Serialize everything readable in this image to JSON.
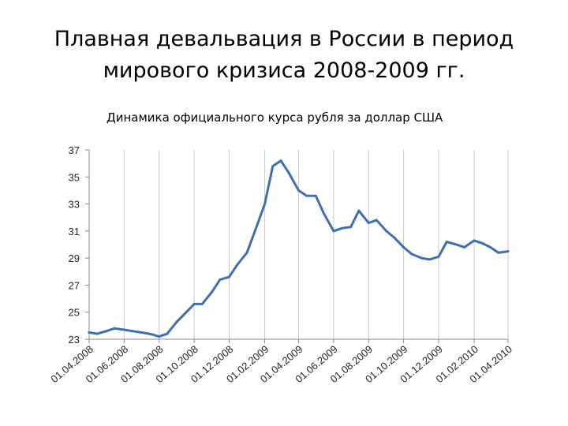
{
  "slide": {
    "title_line1": "Плавная девальвация в России в период",
    "title_line2": "мирового кризиса 2008-2009 гг."
  },
  "chart_data": {
    "type": "line",
    "title": "Динамика официального курса рубля за доллар США",
    "xlabel": "",
    "ylabel": "",
    "ylim": [
      23,
      37
    ],
    "yticks": [
      23,
      25,
      27,
      29,
      31,
      33,
      35,
      37
    ],
    "xticks": [
      "01.04.2008",
      "01.06.2008",
      "01.08.2008",
      "01.10.2008",
      "01.12.2008",
      "01.02.2009",
      "01.04.2009",
      "01.06.2009",
      "01.08.2009",
      "01.10.2009",
      "01.12.2009",
      "01.02.2010",
      "01.04.2010"
    ],
    "grid": "vertical",
    "line_color": "#3f6fae",
    "series": [
      {
        "x": [
          "01.04.2008",
          "15.04.2008",
          "01.05.2008",
          "15.05.2008",
          "01.06.2008",
          "15.06.2008",
          "01.07.2008",
          "15.07.2008",
          "01.08.2008",
          "15.08.2008",
          "01.09.2008",
          "15.09.2008",
          "01.10.2008",
          "15.10.2008",
          "01.11.2008",
          "15.11.2008",
          "01.12.2008",
          "15.12.2008",
          "01.01.2009",
          "15.01.2009",
          "01.02.2009",
          "15.02.2009",
          "01.03.2009",
          "15.03.2009",
          "01.04.2009",
          "15.04.2009",
          "01.05.2009",
          "15.05.2009",
          "01.06.2009",
          "15.06.2009",
          "01.07.2009",
          "15.07.2009",
          "01.08.2009",
          "15.08.2009",
          "01.09.2009",
          "15.09.2009",
          "01.10.2009",
          "15.10.2009",
          "01.11.2009",
          "15.11.2009",
          "01.12.2009",
          "15.12.2009",
          "01.01.2010",
          "15.01.2010",
          "01.02.2010",
          "15.02.2010",
          "01.03.2010",
          "15.03.2010",
          "01.04.2010"
        ],
        "values": [
          23.5,
          23.4,
          23.6,
          23.8,
          23.7,
          23.6,
          23.5,
          23.4,
          23.2,
          23.4,
          24.3,
          24.9,
          25.6,
          25.6,
          26.5,
          27.4,
          27.6,
          28.5,
          29.4,
          31.0,
          33.0,
          35.8,
          36.2,
          35.3,
          34.0,
          33.6,
          33.6,
          32.3,
          31.0,
          31.2,
          31.3,
          32.5,
          31.6,
          31.8,
          31.0,
          30.5,
          29.8,
          29.3,
          29.0,
          28.9,
          29.1,
          30.2,
          30.0,
          29.8,
          30.3,
          30.1,
          29.8,
          29.4,
          29.5
        ]
      }
    ]
  }
}
